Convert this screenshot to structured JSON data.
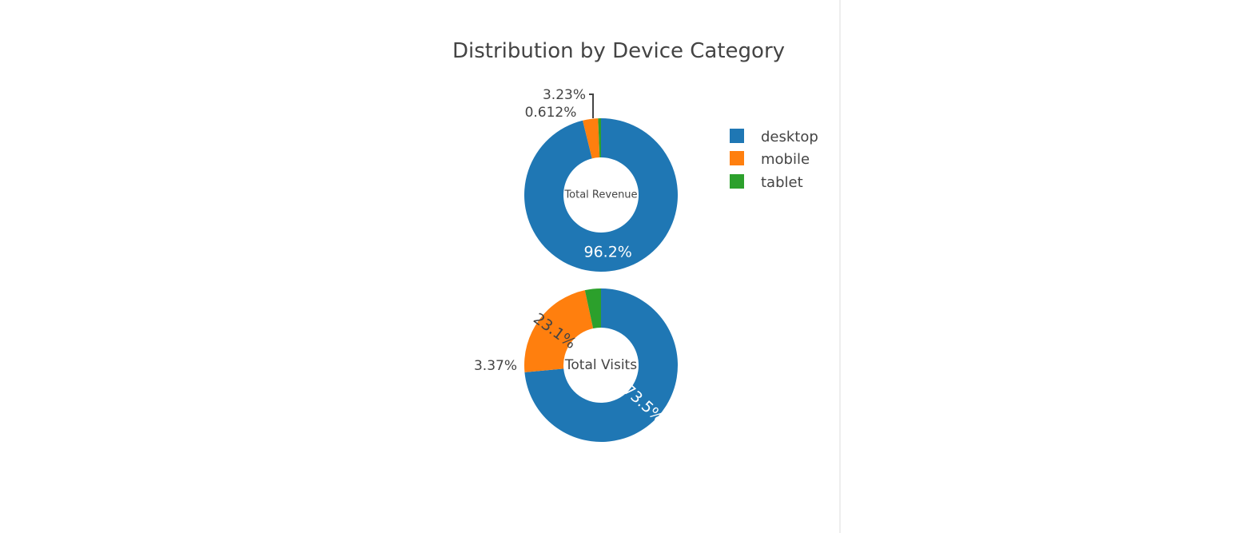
{
  "chart_data": {
    "type": "pie",
    "hole": true,
    "title": "Distribution by Device Category",
    "legend": {
      "placement": "top-right",
      "entries": [
        {
          "name": "desktop",
          "color": "#1f77b4"
        },
        {
          "name": "mobile",
          "color": "#ff7f0e"
        },
        {
          "name": "tablet",
          "color": "#2ca02c"
        }
      ]
    },
    "pies": [
      {
        "center_label": "Total Revenue",
        "slices": [
          {
            "category": "desktop",
            "value": 96.2,
            "label": "96.2%",
            "color": "#1f77b4"
          },
          {
            "category": "mobile",
            "value": 3.23,
            "label": "3.23%",
            "color": "#ff7f0e"
          },
          {
            "category": "tablet",
            "value": 0.612,
            "label": "0.612%",
            "color": "#2ca02c"
          }
        ]
      },
      {
        "center_label": "Total Visits",
        "slices": [
          {
            "category": "desktop",
            "value": 73.5,
            "label": "73.5%",
            "color": "#1f77b4"
          },
          {
            "category": "mobile",
            "value": 23.1,
            "label": "23.1%",
            "color": "#ff7f0e"
          },
          {
            "category": "tablet",
            "value": 3.37,
            "label": "3.37%",
            "color": "#2ca02c"
          }
        ]
      }
    ]
  }
}
